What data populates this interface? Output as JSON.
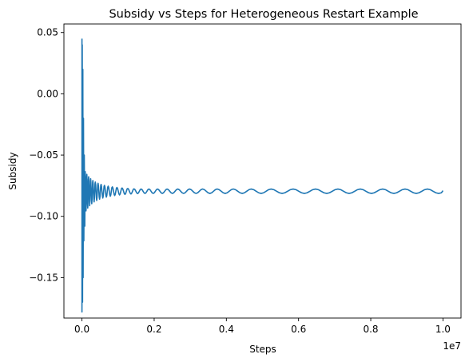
{
  "chart_data": {
    "type": "line",
    "title": "Subsidy vs Steps for Heterogeneous Restart Example",
    "xlabel": "Steps",
    "ylabel": "Subsidy",
    "x_offset_label": "1e7",
    "x_ticks": [
      0.0,
      2000000,
      4000000,
      6000000,
      8000000,
      10000000
    ],
    "x_tick_labels": [
      "0.0",
      "0.2",
      "0.4",
      "0.6",
      "0.8",
      "1.0"
    ],
    "y_ticks": [
      -0.15,
      -0.1,
      -0.05,
      0.0,
      0.05
    ],
    "y_tick_labels": [
      "−0.15",
      "−0.10",
      "−0.05",
      "0.00",
      "0.05"
    ],
    "xlim": [
      -500000,
      10500000
    ],
    "ylim": [
      -0.183,
      0.057
    ],
    "grid": false,
    "series": [
      {
        "color": "#1f77b4",
        "description_points": {
          "x": [
            0,
            20000,
            40000,
            60000,
            80000,
            100000,
            150000,
            200000,
            300000,
            400000,
            600000,
            800000,
            1000000,
            1500000,
            2000000,
            3000000,
            4000000,
            5000000,
            6000000,
            7000000,
            8000000,
            9000000,
            10000000
          ],
          "y": [
            0.045,
            -0.178,
            -0.052,
            -0.108,
            -0.066,
            -0.098,
            -0.072,
            -0.091,
            -0.075,
            -0.087,
            -0.078,
            -0.085,
            -0.079,
            -0.084,
            -0.078,
            -0.083,
            -0.078,
            -0.082,
            -0.079,
            -0.082,
            -0.079,
            -0.081,
            -0.079
          ]
        }
      }
    ]
  }
}
